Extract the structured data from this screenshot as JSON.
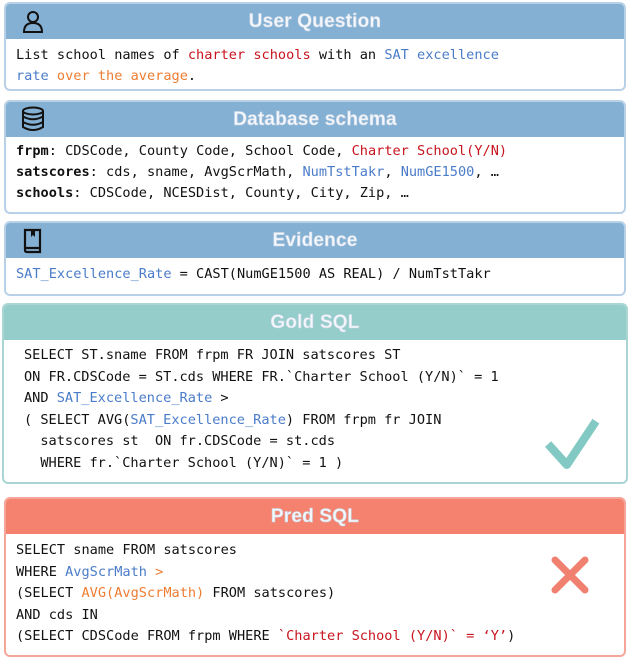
{
  "colors": {
    "blue": "#4a7cc9",
    "red": "#c8141e",
    "orange": "#ee7d32",
    "black": "#111111",
    "check": "#82c8c3",
    "cross": "#f08070"
  },
  "question": {
    "title": "User Question",
    "icon": "user-icon",
    "lines": [
      [
        {
          "t": "List school names of ",
          "c": "black"
        },
        {
          "t": "charter schools",
          "c": "red"
        },
        {
          "t": " with an ",
          "c": "black"
        },
        {
          "t": "SAT excellence",
          "c": "blue"
        }
      ],
      [
        {
          "t": "rate",
          "c": "blue"
        },
        {
          "t": " over the average",
          "c": "orange"
        },
        {
          "t": ".",
          "c": "black"
        }
      ]
    ]
  },
  "schema": {
    "title": "Database schema",
    "icon": "database-icon",
    "lines": [
      [
        {
          "t": "frpm",
          "c": "black",
          "b": true
        },
        {
          "t": ": CDSCode, County Code, School Code, ",
          "c": "black"
        },
        {
          "t": "Charter School(Y/N)",
          "c": "red"
        }
      ],
      [
        {
          "t": "satscores",
          "c": "black",
          "b": true
        },
        {
          "t": ": cds, sname, AvgScrMath, ",
          "c": "black"
        },
        {
          "t": "NumTstTakr",
          "c": "blue"
        },
        {
          "t": ", ",
          "c": "black"
        },
        {
          "t": "NumGE1500",
          "c": "blue"
        },
        {
          "t": ", …",
          "c": "black"
        }
      ],
      [
        {
          "t": "schools",
          "c": "black",
          "b": true
        },
        {
          "t": ": CDSCode, NCESDist, County, City, Zip, …",
          "c": "black"
        }
      ]
    ]
  },
  "evidence": {
    "title": "Evidence",
    "icon": "book-icon",
    "lines": [
      [
        {
          "t": "SAT_Excellence_Rate",
          "c": "blue"
        },
        {
          "t": " = CAST(NumGE1500 AS REAL) / NumTstTakr",
          "c": "black"
        }
      ]
    ]
  },
  "gold": {
    "title": "Gold SQL",
    "status_icon": "checkmark-icon",
    "lines": [
      [
        {
          "t": "SELECT ST.sname FROM frpm FR JOIN satscores ST",
          "c": "black"
        }
      ],
      [
        {
          "t": "ON FR.CDSCode = ST.cds WHERE FR.`Charter School (Y/N)` = 1",
          "c": "black"
        }
      ],
      [
        {
          "t": "AND ",
          "c": "black"
        },
        {
          "t": "SAT_Excellence_Rate",
          "c": "blue"
        },
        {
          "t": " >",
          "c": "black"
        }
      ],
      [
        {
          "t": "( SELECT AVG(",
          "c": "black"
        },
        {
          "t": "SAT_Excellence_Rate",
          "c": "blue"
        },
        {
          "t": ") FROM frpm fr JOIN",
          "c": "black"
        }
      ],
      [
        {
          "t": "  satscores st  ON fr.CDSCode = st.cds",
          "c": "black"
        }
      ],
      [
        {
          "t": "  WHERE fr.`Charter School (Y/N)` = 1 )",
          "c": "black"
        }
      ]
    ]
  },
  "pred": {
    "title": "Pred SQL",
    "status_icon": "cross-icon",
    "lines": [
      [
        {
          "t": "SELECT sname FROM satscores",
          "c": "black"
        }
      ],
      [
        {
          "t": "WHERE ",
          "c": "black"
        },
        {
          "t": "AvgScrMath",
          "c": "blue"
        },
        {
          "t": " >",
          "c": "orange"
        }
      ],
      [
        {
          "t": "(SELECT ",
          "c": "black"
        },
        {
          "t": "AVG(AvgScrMath)",
          "c": "orange"
        },
        {
          "t": " FROM satscores)",
          "c": "black"
        }
      ],
      [
        {
          "t": "AND cds IN",
          "c": "black"
        }
      ],
      [
        {
          "t": "(SELECT CDSCode FROM frpm WHERE ",
          "c": "black"
        },
        {
          "t": "`Charter School (Y/N)` = ‘Y’",
          "c": "red"
        },
        {
          "t": ")",
          "c": "black"
        }
      ]
    ]
  }
}
